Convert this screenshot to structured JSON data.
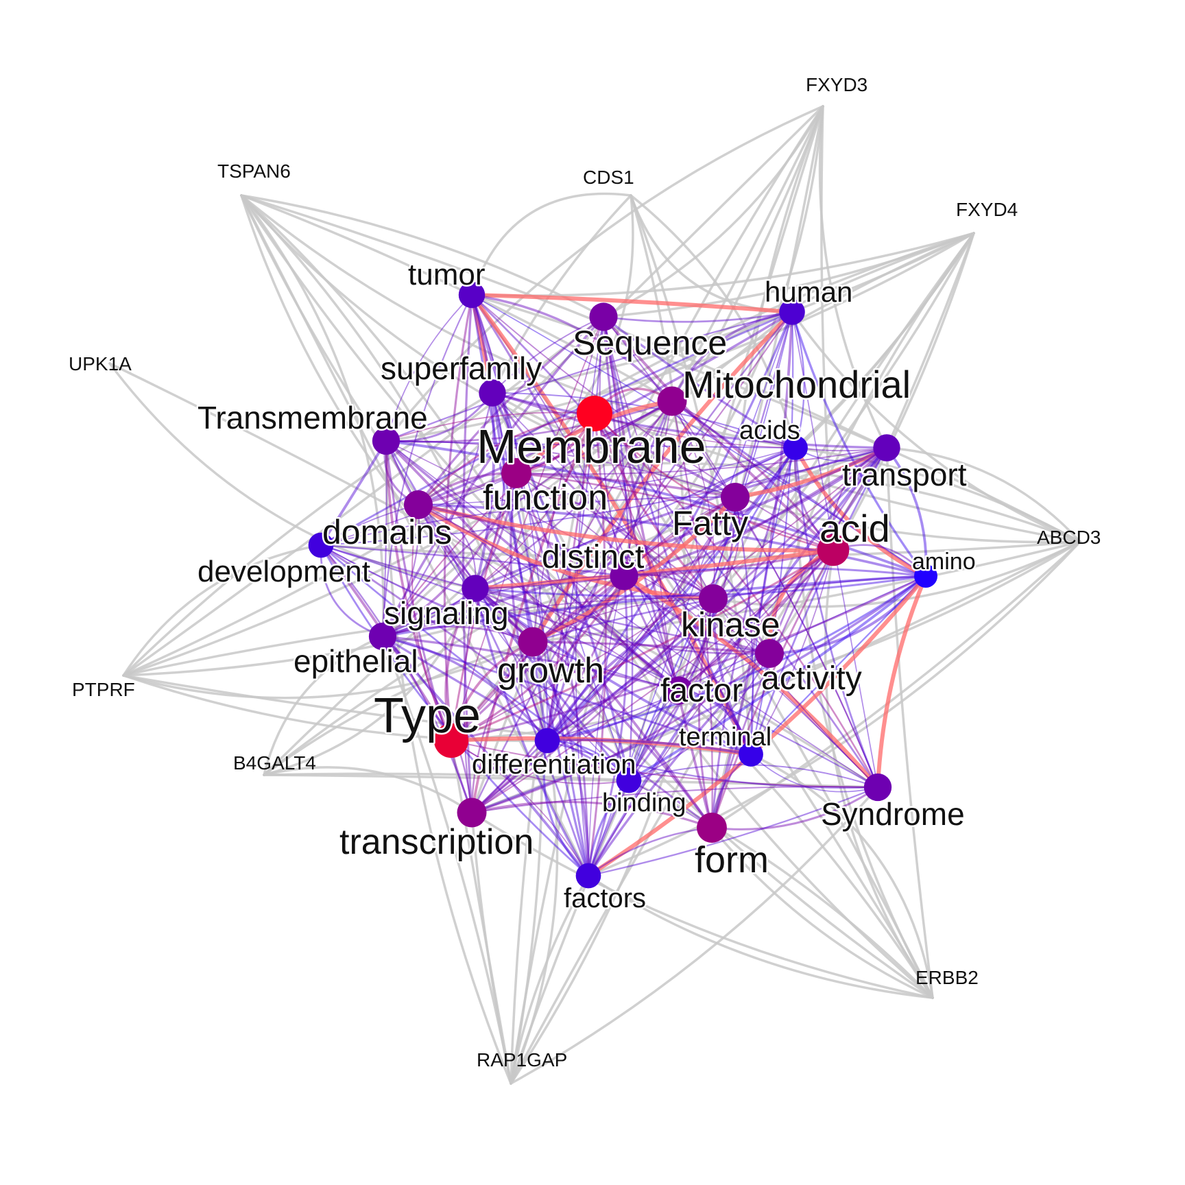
{
  "graph": {
    "node_colors": {
      "low": "#0000ff",
      "high": "#ff0000"
    },
    "edge_colors": {
      "gene_edge": "#c8c8c8"
    },
    "gene_nodes": [
      {
        "id": "FXYD3",
        "label": "FXYD3"
      },
      {
        "id": "CDS1",
        "label": "CDS1"
      },
      {
        "id": "TSPAN6",
        "label": "TSPAN6"
      },
      {
        "id": "FXYD4",
        "label": "FXYD4"
      },
      {
        "id": "UPK1A",
        "label": "UPK1A"
      },
      {
        "id": "ABCD3",
        "label": "ABCD3"
      },
      {
        "id": "PTPRF",
        "label": "PTPRF"
      },
      {
        "id": "B4GALT4",
        "label": "B4GALT4"
      },
      {
        "id": "ERBB2",
        "label": "ERBB2"
      },
      {
        "id": "RAP1GAP",
        "label": "RAP1GAP"
      }
    ],
    "word_nodes": [
      {
        "id": "tumor",
        "label": "tumor",
        "weight": 0.25
      },
      {
        "id": "human",
        "label": "human",
        "weight": 0.2
      },
      {
        "id": "Sequence",
        "label": "Sequence",
        "weight": 0.4
      },
      {
        "id": "superfamily",
        "label": "superfamily",
        "weight": 0.3
      },
      {
        "id": "Mitochondrial",
        "label": "Mitochondrial",
        "weight": 0.5
      },
      {
        "id": "Transmembrane",
        "label": "Transmembrane",
        "weight": 0.35
      },
      {
        "id": "Membrane",
        "label": "Membrane",
        "weight": 1.0
      },
      {
        "id": "acids",
        "label": "acids",
        "weight": 0.1
      },
      {
        "id": "transport",
        "label": "transport",
        "weight": 0.3
      },
      {
        "id": "function",
        "label": "function",
        "weight": 0.55
      },
      {
        "id": "domains",
        "label": "domains",
        "weight": 0.45
      },
      {
        "id": "Fatty",
        "label": "Fatty",
        "weight": 0.45
      },
      {
        "id": "acid",
        "label": "acid",
        "weight": 0.7
      },
      {
        "id": "development",
        "label": "development",
        "weight": 0.15
      },
      {
        "id": "distinct",
        "label": "distinct",
        "weight": 0.4
      },
      {
        "id": "amino",
        "label": "amino",
        "weight": 0.0
      },
      {
        "id": "signaling",
        "label": "signaling",
        "weight": 0.3
      },
      {
        "id": "kinase",
        "label": "kinase",
        "weight": 0.45
      },
      {
        "id": "epithelial",
        "label": "epithelial",
        "weight": 0.35
      },
      {
        "id": "growth",
        "label": "growth",
        "weight": 0.5
      },
      {
        "id": "activity",
        "label": "activity",
        "weight": 0.45
      },
      {
        "id": "factor",
        "label": "factor",
        "weight": 0.4
      },
      {
        "id": "Type",
        "label": "Type",
        "weight": 0.9
      },
      {
        "id": "terminal",
        "label": "terminal",
        "weight": 0.1
      },
      {
        "id": "differentiation",
        "label": "differentiation",
        "weight": 0.15
      },
      {
        "id": "binding",
        "label": "binding",
        "weight": 0.15
      },
      {
        "id": "Syndrome",
        "label": "Syndrome",
        "weight": 0.35
      },
      {
        "id": "transcription",
        "label": "transcription",
        "weight": 0.5
      },
      {
        "id": "form",
        "label": "form",
        "weight": 0.55
      },
      {
        "id": "factors",
        "label": "factors",
        "weight": 0.15
      }
    ]
  }
}
